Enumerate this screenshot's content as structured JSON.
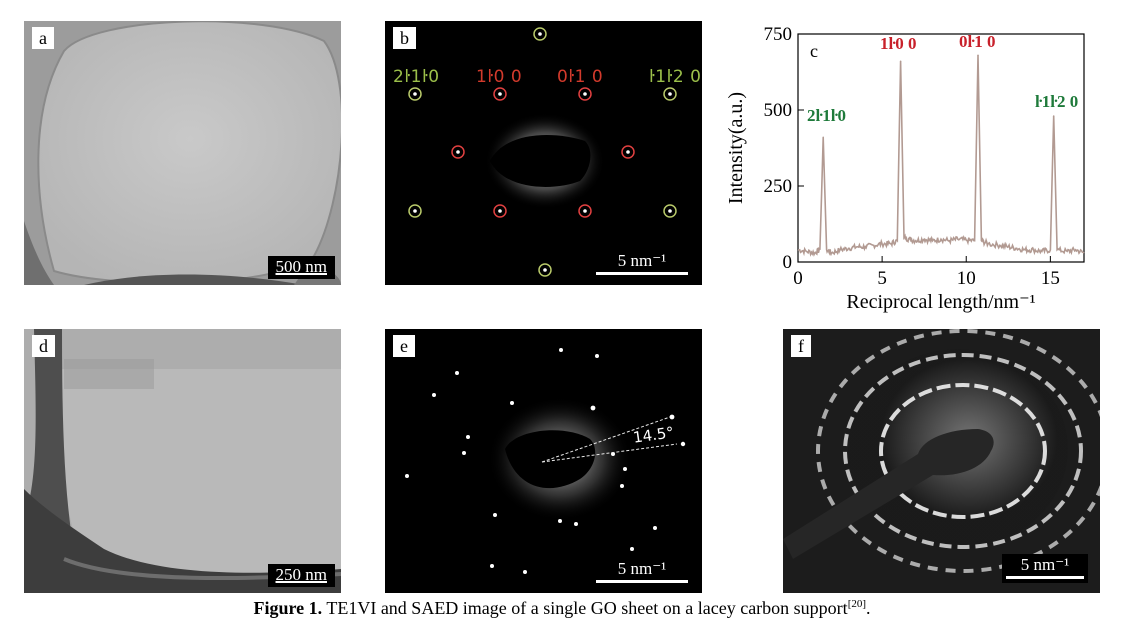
{
  "panels": {
    "a": {
      "label": "a",
      "scale": "500 nm"
    },
    "b": {
      "label": "b",
      "scale": "5 nm⁻¹",
      "indices": {
        "i1": "2ŀ1ŀ0",
        "i2": "1ŀ0 0",
        "i3": "0ŀ1 0",
        "i4": "ŀ1ŀ2 0"
      }
    },
    "c": {
      "label": "c"
    },
    "d": {
      "label": "d",
      "scale": "250 nm"
    },
    "e": {
      "label": "e",
      "scale": "5 nm⁻¹",
      "angle": "14.5°"
    },
    "f": {
      "label": "f",
      "scale": "5 nm⁻¹"
    }
  },
  "chart_data": {
    "type": "line",
    "title": "",
    "xlabel": "Reciprocal length/nm⁻¹",
    "ylabel": "Intensity(a.u.)",
    "xlim": [
      0,
      17
    ],
    "ylim": [
      0,
      750
    ],
    "xticks": [
      0,
      5,
      10,
      15
    ],
    "yticks": [
      0,
      250,
      500,
      750
    ],
    "line_color": "#b29a92",
    "peaks": [
      {
        "label": "2ŀ1ŀ0",
        "x": 1.5,
        "y": 410,
        "color": "#1e7a3a"
      },
      {
        "label": "1ŀ0 0",
        "x": 6.1,
        "y": 660,
        "color": "#c8202a"
      },
      {
        "label": "0ŀ1 0",
        "x": 10.7,
        "y": 680,
        "color": "#c8202a"
      },
      {
        "label": "ŀ1ŀ2 0",
        "x": 15.2,
        "y": 480,
        "color": "#1e7a3a"
      }
    ],
    "background": [
      [
        0.0,
        40
      ],
      [
        0.5,
        35
      ],
      [
        1.0,
        30
      ],
      [
        1.3,
        40
      ],
      [
        1.5,
        410
      ],
      [
        1.7,
        40
      ],
      [
        2.0,
        30
      ],
      [
        2.5,
        40
      ],
      [
        3.0,
        45
      ],
      [
        3.5,
        50
      ],
      [
        4.0,
        50
      ],
      [
        4.5,
        55
      ],
      [
        5.0,
        60
      ],
      [
        5.5,
        60
      ],
      [
        5.9,
        70
      ],
      [
        6.1,
        660
      ],
      [
        6.3,
        80
      ],
      [
        6.6,
        75
      ],
      [
        7.0,
        70
      ],
      [
        7.5,
        75
      ],
      [
        8.0,
        70
      ],
      [
        8.5,
        75
      ],
      [
        9.0,
        70
      ],
      [
        9.5,
        75
      ],
      [
        10.0,
        72
      ],
      [
        10.5,
        70
      ],
      [
        10.7,
        680
      ],
      [
        10.9,
        70
      ],
      [
        11.3,
        60
      ],
      [
        12.0,
        55
      ],
      [
        12.5,
        50
      ],
      [
        13.0,
        45
      ],
      [
        13.5,
        40
      ],
      [
        14.0,
        40
      ],
      [
        14.5,
        35
      ],
      [
        15.0,
        40
      ],
      [
        15.2,
        480
      ],
      [
        15.4,
        40
      ],
      [
        16.0,
        35
      ],
      [
        16.5,
        40
      ],
      [
        17.0,
        30
      ]
    ]
  },
  "caption": {
    "bold": "Figure 1.",
    "text": " TE1VI and SAED image of a single GO sheet on a lacey carbon support",
    "ref": "[20]",
    "end": "."
  }
}
